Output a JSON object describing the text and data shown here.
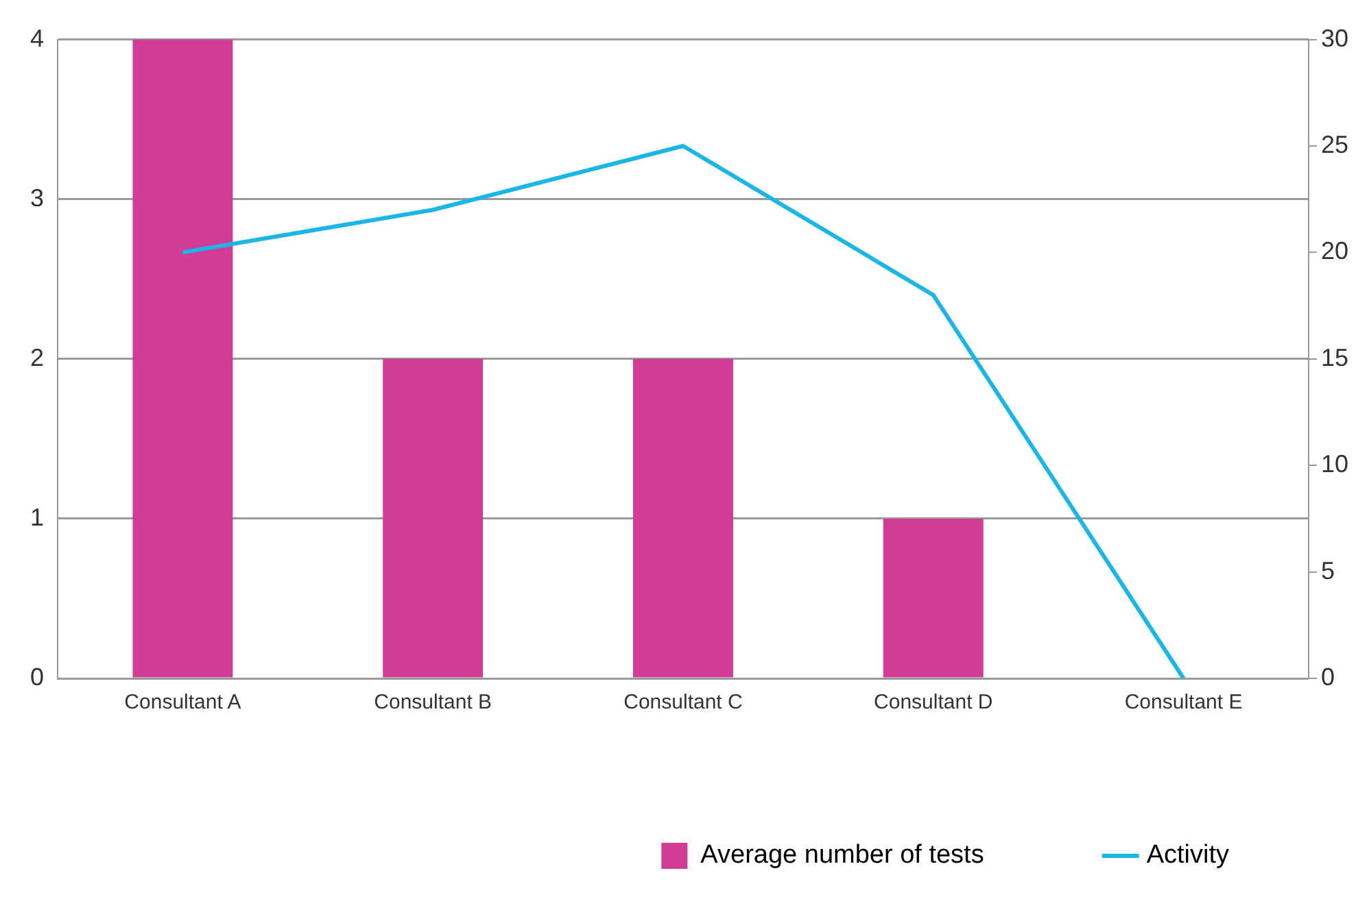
{
  "chart_data": {
    "type": "bar",
    "categories": [
      "Consultant A",
      "Consultant B",
      "Consultant C",
      "Consultant D",
      "Consultant E"
    ],
    "series": [
      {
        "name": "Average number of tests",
        "color": "#d03c96",
        "values": [
          4,
          2,
          2,
          1,
          0
        ]
      },
      {
        "name": "Activity",
        "type": "line",
        "axis": "y2",
        "color": "#1ab7e6",
        "values": [
          20,
          22,
          25,
          18,
          0
        ]
      }
    ],
    "ylim": [
      0,
      4
    ],
    "yticks": [
      0,
      1,
      2,
      3,
      4
    ],
    "y2lim": [
      0,
      30
    ],
    "y2ticks": [
      0,
      5,
      10,
      15,
      20,
      25,
      30
    ],
    "grid": "y",
    "legend": "bottom right",
    "marker": "none"
  }
}
